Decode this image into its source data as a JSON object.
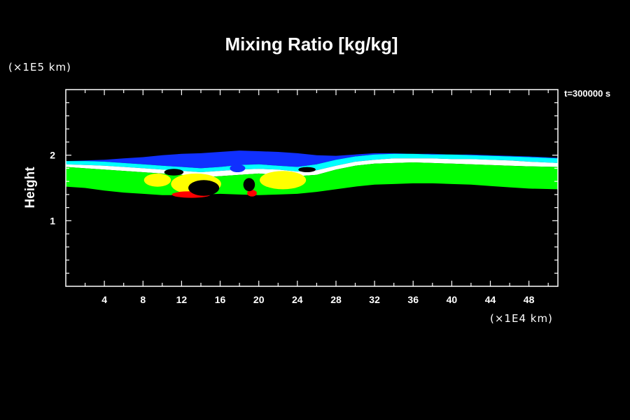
{
  "chart_data": {
    "type": "heatmap",
    "title": "Mixing Ratio [kg/kg]",
    "ylabel": "Height",
    "yunit": "(×1E5 km)",
    "xunit": "(×1E4 km)",
    "time_label": "t=300000 s",
    "xlim": [
      0,
      51
    ],
    "ylim": [
      0,
      3
    ],
    "x_ticks": [
      4,
      8,
      12,
      16,
      20,
      24,
      28,
      32,
      36,
      40,
      44,
      48
    ],
    "y_ticks": [
      1,
      2
    ],
    "colors": {
      "background": "#000000",
      "frame": "#ffffff",
      "blue": "#1030ff",
      "cyan": "#00ffff",
      "white": "#ffffff",
      "green": "#00ff00",
      "yellow": "#ffff00",
      "red": "#ff0000"
    },
    "bands": {
      "x": [
        0,
        2,
        4,
        6,
        8,
        10,
        12,
        14,
        16,
        18,
        20,
        22,
        24,
        26,
        28,
        30,
        32,
        34,
        36,
        38,
        40,
        42,
        44,
        46,
        48,
        51
      ],
      "blue_top": [
        1.9,
        1.92,
        1.93,
        1.95,
        1.97,
        2.0,
        2.02,
        2.03,
        2.05,
        2.07,
        2.06,
        2.05,
        2.03,
        2.0,
        1.99,
        2.01,
        2.03,
        2.03,
        2.02,
        2.02,
        2.01,
        2.01,
        2.0,
        1.99,
        1.98,
        1.96
      ],
      "cyan_top": [
        1.91,
        1.91,
        1.9,
        1.88,
        1.86,
        1.84,
        1.82,
        1.8,
        1.82,
        1.85,
        1.86,
        1.84,
        1.82,
        1.86,
        1.93,
        1.98,
        2.01,
        2.02,
        2.02,
        2.01,
        2.01,
        2.0,
        1.99,
        1.98,
        1.97,
        1.95
      ],
      "white_top": [
        1.86,
        1.85,
        1.84,
        1.82,
        1.8,
        1.78,
        1.76,
        1.74,
        1.76,
        1.78,
        1.79,
        1.78,
        1.75,
        1.77,
        1.84,
        1.9,
        1.93,
        1.95,
        1.95,
        1.95,
        1.94,
        1.94,
        1.93,
        1.92,
        1.9,
        1.88
      ],
      "green_top": [
        1.82,
        1.8,
        1.78,
        1.76,
        1.74,
        1.72,
        1.7,
        1.66,
        1.68,
        1.7,
        1.72,
        1.7,
        1.68,
        1.7,
        1.78,
        1.84,
        1.87,
        1.88,
        1.89,
        1.88,
        1.87,
        1.86,
        1.85,
        1.84,
        1.83,
        1.82
      ],
      "green_bot": [
        1.52,
        1.5,
        1.46,
        1.43,
        1.41,
        1.39,
        1.39,
        1.4,
        1.41,
        1.4,
        1.39,
        1.4,
        1.41,
        1.44,
        1.48,
        1.52,
        1.55,
        1.56,
        1.57,
        1.57,
        1.56,
        1.55,
        1.53,
        1.51,
        1.49,
        1.48
      ]
    }
  }
}
